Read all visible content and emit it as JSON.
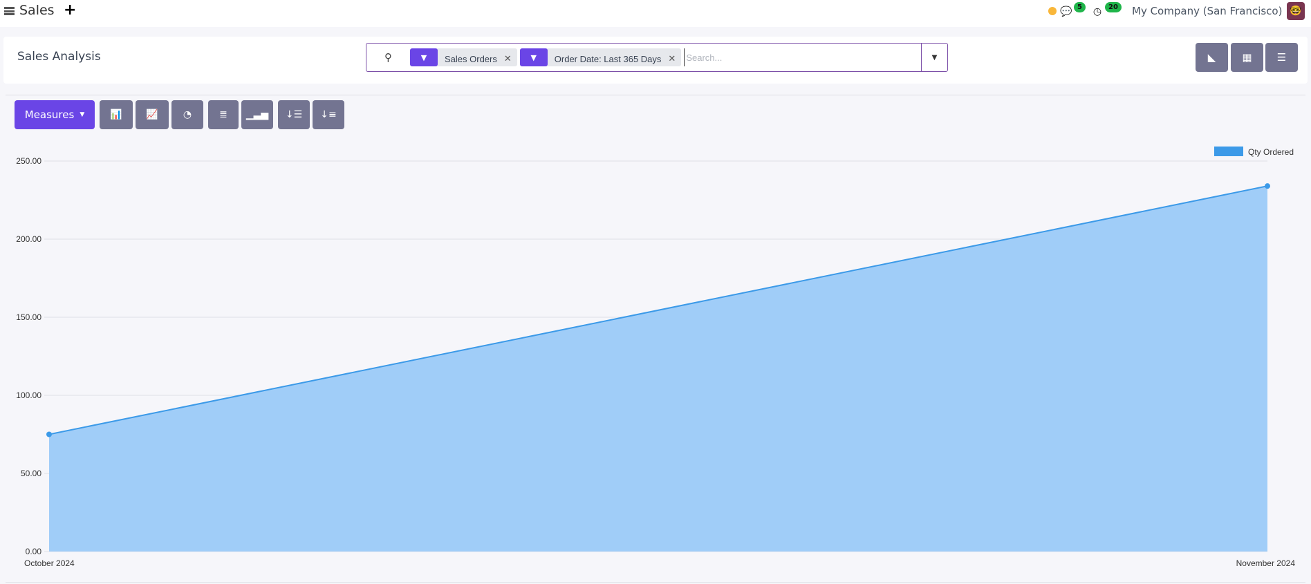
{
  "topbar": {
    "app_name": "Sales",
    "new_label": "+",
    "chat_count": "5",
    "activity_count": "20",
    "company": "My Company (San Francisco)",
    "icons": [
      "menu-icon",
      "plus-icon",
      "status-dot",
      "chat-icon",
      "clock-icon",
      "avatar"
    ]
  },
  "control_panel": {
    "title": "Sales Analysis",
    "search": {
      "placeholder": "Search...",
      "facets": [
        {
          "icon": "filter-icon",
          "label": "Sales Orders"
        },
        {
          "icon": "filter-icon",
          "label": "Order Date: Last 365 Days"
        }
      ]
    },
    "view_switcher": [
      "graph-view",
      "pivot-view",
      "list-view"
    ]
  },
  "toolbar": {
    "measures_label": "Measures",
    "buttons": [
      "bar-chart",
      "line-chart",
      "pie-chart",
      "stacked",
      "cumulative",
      "descending",
      "ascending"
    ]
  },
  "colors": {
    "accent": "#6a45e6",
    "button_grey": "#737491",
    "area_fill": "#a0cdf8",
    "line": "#3c9ae8"
  },
  "chart_data": {
    "type": "area",
    "categories": [
      "October 2024",
      "November 2024"
    ],
    "series": [
      {
        "name": "Qty Ordered",
        "values": [
          75,
          234
        ]
      }
    ],
    "yticks": [
      "0.00",
      "50.00",
      "100.00",
      "150.00",
      "200.00",
      "250.00"
    ],
    "ylim": [
      0,
      250
    ],
    "grid": true,
    "legend": "top-right"
  }
}
